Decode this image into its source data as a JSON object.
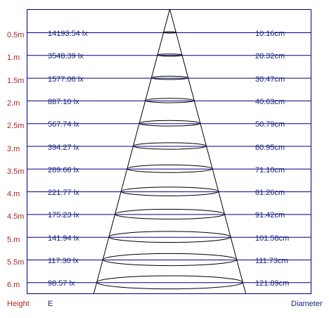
{
  "footer": {
    "height_label": "Height",
    "illuminance_label": "E",
    "diameter_label": "Diameter"
  },
  "rows": [
    {
      "height": "0.5m",
      "illuminance": "14193.54 lx",
      "diameter": "10.16cm"
    },
    {
      "height": "1.m",
      "illuminance": "3548.39 lx",
      "diameter": "20.32cm"
    },
    {
      "height": "1.5m",
      "illuminance": "1577.06 lx",
      "diameter": "30.47cm"
    },
    {
      "height": "2.m",
      "illuminance": "887.10 lx",
      "diameter": "40.63cm"
    },
    {
      "height": "2.5m",
      "illuminance": "567.74 lx",
      "diameter": "50.79cm"
    },
    {
      "height": "3.m",
      "illuminance": "394.27 lx",
      "diameter": "60.95cm"
    },
    {
      "height": "3.5m",
      "illuminance": "289.66 lx",
      "diameter": "71.10cm"
    },
    {
      "height": "4.m",
      "illuminance": "221.77 lx",
      "diameter": "81.26cm"
    },
    {
      "height": "4.5m",
      "illuminance": "175.23 lx",
      "diameter": "91.42cm"
    },
    {
      "height": "5.m",
      "illuminance": "141.94 lx",
      "diameter": "101.58cm"
    },
    {
      "height": "5.5m",
      "illuminance": "117.30 lx",
      "diameter": "111.73cm"
    },
    {
      "height": "6.m",
      "illuminance": "98.57 lx",
      "diameter": "121.89cm"
    }
  ],
  "colors": {
    "height_text": "#b22222",
    "value_text": "#1a237e",
    "lines": "#000080",
    "cone": "#000000"
  }
}
